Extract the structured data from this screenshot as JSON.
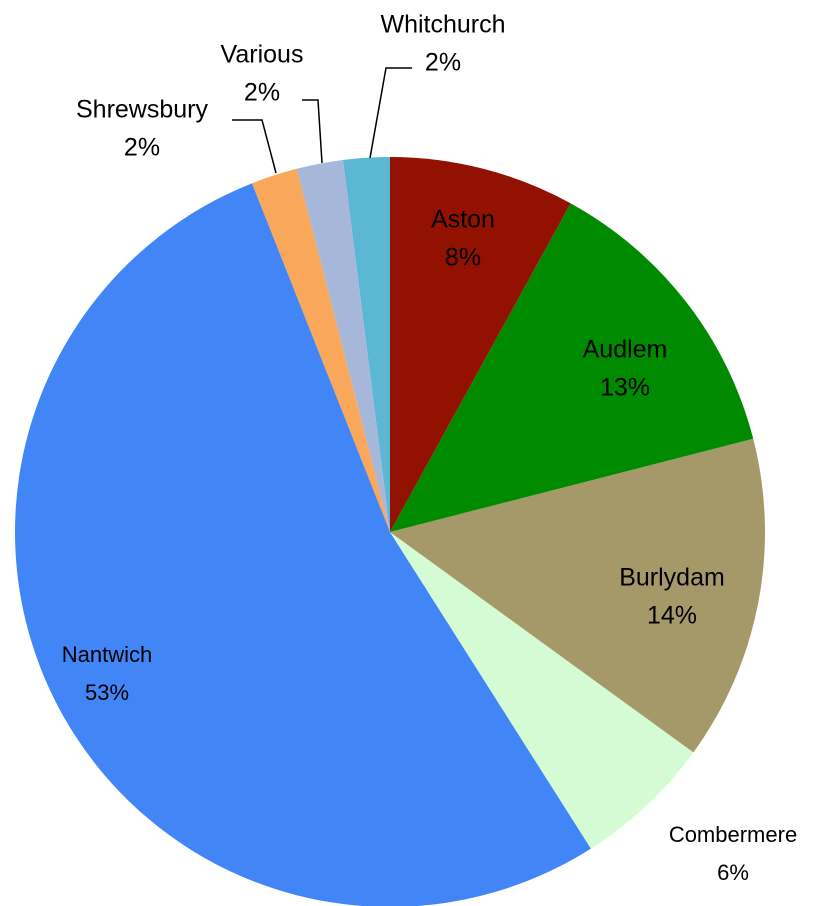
{
  "chart_data": {
    "type": "pie",
    "categories": [
      "Aston",
      "Audlem",
      "Burlydam",
      "Combermere",
      "Nantwich",
      "Shrewsbury",
      "Various",
      "Whitchurch"
    ],
    "values": [
      8,
      13,
      14,
      6,
      53,
      2,
      2,
      2
    ],
    "value_labels": [
      "8%",
      "13%",
      "14%",
      "6%",
      "53%",
      "2%",
      "2%",
      "2%"
    ],
    "colors": [
      "#931100",
      "#008a00",
      "#a5996a",
      "#d5fbd5",
      "#4285f7",
      "#f9a75b",
      "#a6b7d9",
      "#5bb7d3"
    ]
  }
}
